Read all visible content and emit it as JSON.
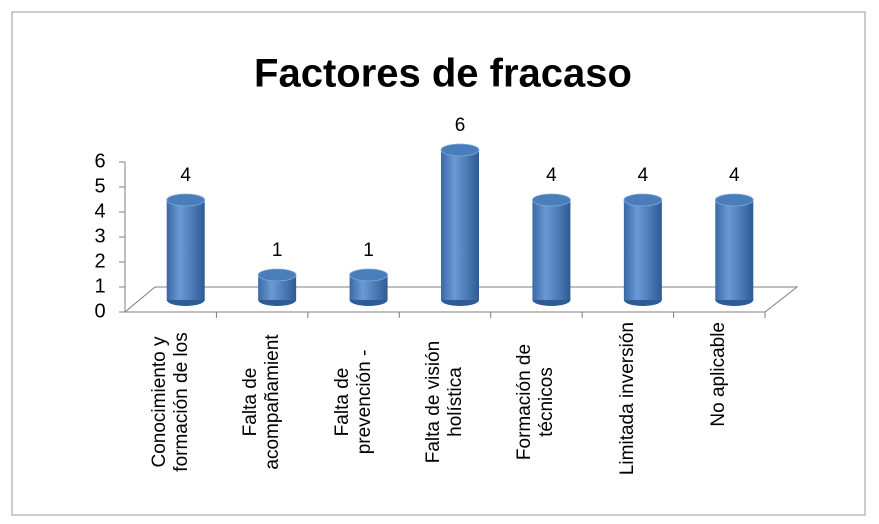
{
  "chart_data": {
    "type": "bar",
    "title": "Factores de fracaso",
    "categories": [
      "Conocimiento y formación de los",
      "Falta de acompañamient",
      "Falta de prevención -",
      "Falta de visión holística",
      "Formación de técnicos",
      "Limitada inversión",
      "No aplicable"
    ],
    "values": [
      4,
      1,
      1,
      6,
      4,
      4,
      4
    ],
    "color": "#4a7ebb",
    "ylim": [
      0,
      6
    ],
    "yticks": [
      0,
      1,
      2,
      3,
      4,
      5,
      6
    ],
    "grid": false
  }
}
